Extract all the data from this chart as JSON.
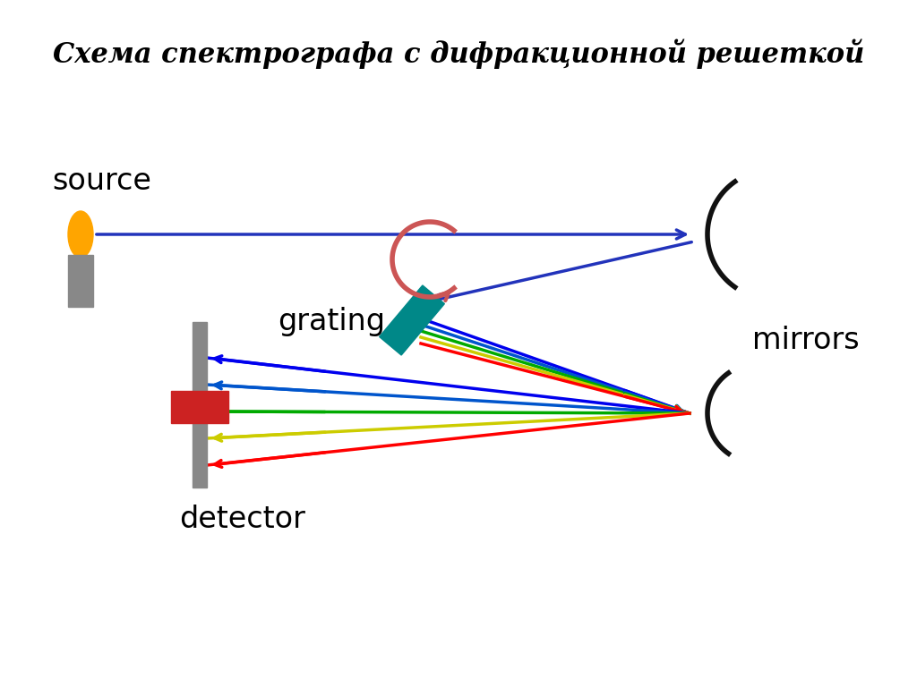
{
  "title": "Схема спектрографа с дифракционной решеткой",
  "title_fontsize": 22,
  "bg_color": "#ffffff",
  "source_label": "source",
  "grating_label": "grating",
  "mirrors_label": "mirrors",
  "detector_label": "detector",
  "flame_color": "#FFA500",
  "candle_color": "#888888",
  "beam_color": "#2233BB",
  "spectrum_colors": [
    "#0000EE",
    "#0055CC",
    "#00AA00",
    "#CCCC00",
    "#FF0000"
  ],
  "label_fontsize": 24,
  "rot_arrow_color": "#CC5555",
  "grating_color": "#008888",
  "mirror_color": "#111111",
  "detector_bar_color": "#888888",
  "detector_cross_color": "#CC2222"
}
